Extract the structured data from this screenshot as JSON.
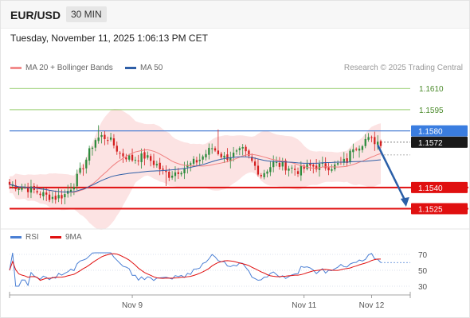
{
  "header": {
    "pair": "EUR/USD",
    "timeframe": "30 MIN"
  },
  "datetime": "Tuesday, November 11, 2025 1:06:13 PM CET",
  "legend": {
    "ma20": {
      "label": "MA 20 + Bollinger Bands",
      "color": "#f28c8c"
    },
    "ma50": {
      "label": "MA 50",
      "color": "#2f5fa7"
    }
  },
  "research_note": "Research © 2025 Trading Central",
  "rsi_legend": {
    "rsi": {
      "label": "RSI",
      "color": "#4a7fd4"
    },
    "ma9": {
      "label": "9MA",
      "color": "#e01010"
    }
  },
  "chart_data": [
    {
      "type": "candlestick",
      "title": "EUR/USD",
      "ylim": [
        1.1518,
        1.1618
      ],
      "levels": [
        {
          "value": 1.161,
          "label": "1.1610",
          "style": "green"
        },
        {
          "value": 1.1595,
          "label": "1.1595",
          "style": "green"
        },
        {
          "value": 1.158,
          "label": "1.1580",
          "style": "blue-line"
        },
        {
          "value": 1.1572,
          "label": "1.1572",
          "style": "current"
        },
        {
          "value": 1.154,
          "label": "1.1540",
          "style": "red-line"
        },
        {
          "value": 1.1525,
          "label": "1.1525",
          "style": "red-line"
        }
      ],
      "x_ticks": [
        {
          "label": "Nov 9",
          "index": 40
        },
        {
          "label": "Nov 11",
          "index": 96
        },
        {
          "label": "Nov 12",
          "index": 118
        }
      ],
      "candle_count": 122,
      "forecast_arrow": {
        "from_index": 120,
        "from": 1.157,
        "to_index": 129,
        "to": 1.1527
      },
      "color_up": "#2e8b3d",
      "color_down": "#d42020",
      "band_color": "#fbdada",
      "ma20_color": "#f08080",
      "ma50_color": "#2f5fa7"
    },
    {
      "type": "line",
      "title": "RSI",
      "ylim": [
        22,
        78
      ],
      "y_ticks": [
        70,
        50,
        30
      ],
      "series": [
        {
          "name": "RSI",
          "color": "#4a7fd4"
        },
        {
          "name": "9MA",
          "color": "#e01010"
        }
      ]
    }
  ]
}
